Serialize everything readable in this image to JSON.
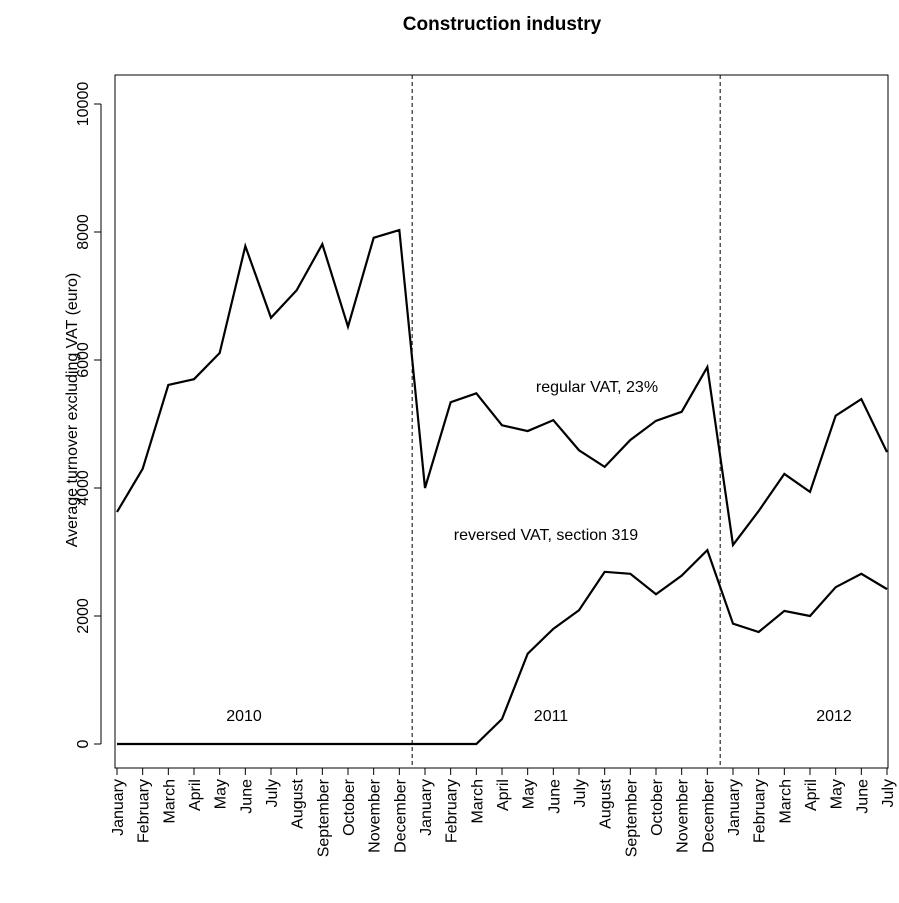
{
  "chart_data": {
    "type": "line",
    "title": "Construction industry",
    "y_label": "Average turnover excluding VAT (euro)",
    "categories": [
      "January",
      "February",
      "March",
      "April",
      "May",
      "June",
      "July",
      "August",
      "September",
      "October",
      "November",
      "December",
      "January",
      "February",
      "March",
      "April",
      "May",
      "June",
      "July",
      "August",
      "September",
      "October",
      "November",
      "December",
      "January",
      "February",
      "March",
      "April",
      "May",
      "June",
      "July"
    ],
    "series": [
      {
        "name": "regular VAT, 23%",
        "color": "#000000",
        "values": [
          3625,
          4300,
          5610,
          5700,
          6110,
          7780,
          6660,
          7090,
          7810,
          6520,
          7910,
          8030,
          4000,
          5340,
          5480,
          4980,
          4890,
          5060,
          4590,
          4330,
          4750,
          5050,
          5190,
          5890,
          3110,
          3640,
          4220,
          3940,
          5130,
          5390,
          4560
        ]
      },
      {
        "name": "reversed VAT, section 319",
        "color": "#000000",
        "values": [
          0,
          0,
          0,
          0,
          0,
          0,
          0,
          0,
          0,
          0,
          0,
          0,
          0,
          0,
          0,
          390,
          1410,
          1800,
          2090,
          2690,
          2660,
          2340,
          2630,
          3030,
          1880,
          1750,
          2080,
          2000,
          2450,
          2660,
          2420
        ]
      }
    ],
    "annotations": [
      "2010",
      "2011",
      "2012"
    ],
    "ylim": [
      0,
      10000
    ],
    "yticks": [
      0,
      2000,
      4000,
      6000,
      8000,
      10000
    ]
  }
}
